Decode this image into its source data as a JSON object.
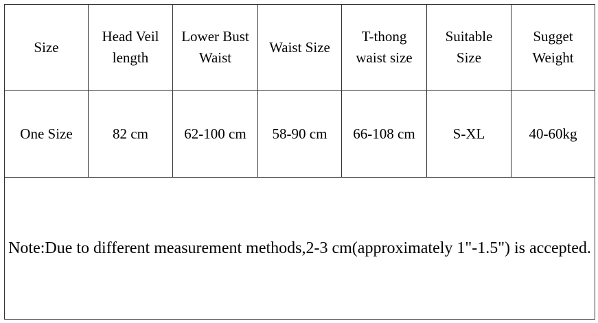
{
  "table": {
    "header": [
      [
        "Size"
      ],
      [
        "Head Veil",
        "length"
      ],
      [
        "Lower Bust",
        "Waist"
      ],
      [
        "Waist Size"
      ],
      [
        "T-thong",
        "waist size"
      ],
      [
        "Suitable",
        "Size"
      ],
      [
        "Sugget",
        "Weight"
      ]
    ],
    "rows": [
      [
        "One Size",
        "82 cm",
        "62-100 cm",
        "58-90 cm",
        "66-108 cm",
        "S-XL",
        "40-60kg"
      ]
    ],
    "note": "Note:Due to different measurement methods,2-3 cm(approximately 1\"-1.5\") is accepted."
  }
}
